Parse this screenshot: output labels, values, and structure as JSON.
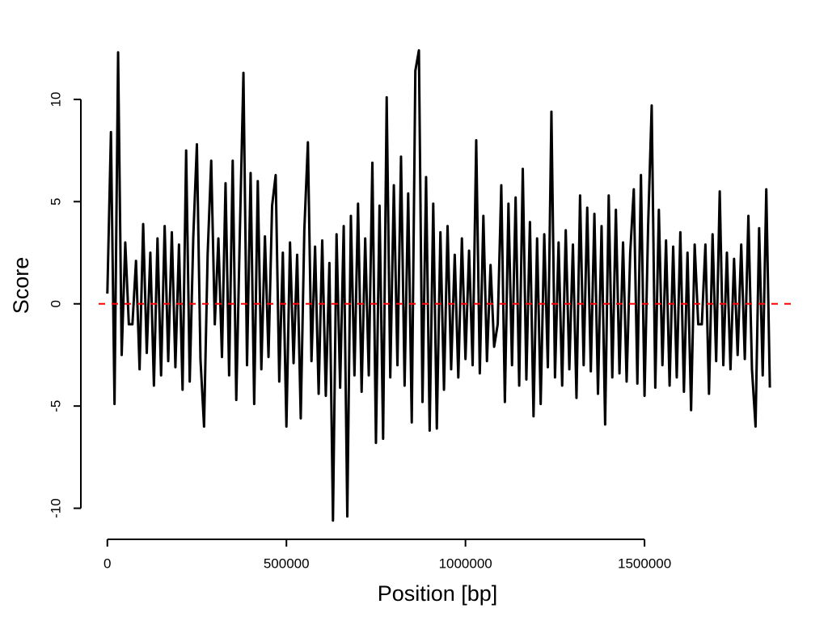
{
  "chart_data": {
    "type": "line",
    "xlabel": "Position [bp]",
    "ylabel": "Score",
    "xlim": [
      -74000,
      1922000
    ],
    "ylim": [
      -11.52,
      13.32
    ],
    "xticks": [
      0,
      500000,
      1000000,
      1500000
    ],
    "yticks": [
      -10,
      -5,
      0,
      5,
      10
    ],
    "hline": 0,
    "hline_color": "#ff0000",
    "series": [
      {
        "color": "#000000",
        "x": [
          0,
          10000,
          20000,
          30000,
          40000,
          50000,
          60000,
          70000,
          80000,
          90000,
          100000,
          110000,
          120000,
          130000,
          140000,
          150000,
          160000,
          170000,
          180000,
          190000,
          200000,
          210000,
          220000,
          230000,
          240000,
          250000,
          260000,
          270000,
          280000,
          290000,
          300000,
          310000,
          320000,
          330000,
          340000,
          350000,
          360000,
          370000,
          380000,
          390000,
          400000,
          410000,
          420000,
          430000,
          440000,
          450000,
          460000,
          470000,
          480000,
          490000,
          500000,
          510000,
          520000,
          530000,
          540000,
          550000,
          560000,
          570000,
          580000,
          590000,
          600000,
          610000,
          620000,
          630000,
          640000,
          650000,
          660000,
          670000,
          680000,
          690000,
          700000,
          710000,
          720000,
          730000,
          740000,
          750000,
          760000,
          770000,
          780000,
          790000,
          800000,
          810000,
          820000,
          830000,
          840000,
          850000,
          860000,
          870000,
          880000,
          890000,
          900000,
          910000,
          920000,
          930000,
          940000,
          950000,
          960000,
          970000,
          980000,
          990000,
          1000000,
          1010000,
          1020000,
          1030000,
          1040000,
          1050000,
          1060000,
          1070000,
          1080000,
          1090000,
          1100000,
          1110000,
          1120000,
          1130000,
          1140000,
          1150000,
          1160000,
          1170000,
          1180000,
          1190000,
          1200000,
          1210000,
          1220000,
          1230000,
          1240000,
          1250000,
          1260000,
          1270000,
          1280000,
          1290000,
          1300000,
          1310000,
          1320000,
          1330000,
          1340000,
          1350000,
          1360000,
          1370000,
          1380000,
          1390000,
          1400000,
          1410000,
          1420000,
          1430000,
          1440000,
          1450000,
          1460000,
          1470000,
          1480000,
          1490000,
          1500000,
          1510000,
          1520000,
          1530000,
          1540000,
          1550000,
          1560000,
          1570000,
          1580000,
          1590000,
          1600000,
          1610000,
          1620000,
          1630000,
          1640000,
          1650000,
          1660000,
          1670000,
          1680000,
          1690000,
          1700000,
          1710000,
          1720000,
          1730000,
          1740000,
          1750000,
          1760000,
          1770000,
          1780000,
          1790000,
          1800000,
          1810000,
          1820000,
          1830000,
          1840000,
          1850000
        ],
        "values": [
          0.5,
          8.4,
          -4.9,
          12.3,
          -2.5,
          3.0,
          -1.0,
          -1.0,
          2.1,
          -3.2,
          3.9,
          -2.4,
          2.5,
          -4.0,
          3.2,
          -3.5,
          3.8,
          -2.8,
          3.5,
          -3.1,
          2.9,
          -4.2,
          7.5,
          -3.8,
          3.3,
          7.8,
          -2.7,
          -6.0,
          2.4,
          7.0,
          -1.0,
          3.2,
          -2.6,
          5.9,
          -3.5,
          7.0,
          -4.7,
          3.5,
          11.3,
          -3.0,
          6.4,
          -4.9,
          6.0,
          -3.2,
          3.3,
          -2.6,
          4.8,
          6.3,
          -3.8,
          2.5,
          -6.0,
          3.0,
          -2.9,
          2.4,
          -5.6,
          3.6,
          7.9,
          -2.8,
          2.8,
          -4.4,
          3.1,
          -4.5,
          2.0,
          -10.6,
          3.4,
          -4.1,
          3.8,
          -10.4,
          4.3,
          -3.5,
          4.9,
          -4.3,
          3.2,
          -3.5,
          6.9,
          -6.8,
          4.8,
          -6.6,
          10.1,
          -3.6,
          5.8,
          -3.0,
          7.2,
          -4.0,
          5.4,
          -5.8,
          11.4,
          12.4,
          -4.8,
          6.2,
          -6.2,
          4.9,
          -6.1,
          3.5,
          -4.2,
          3.8,
          -3.2,
          2.4,
          -3.6,
          3.2,
          -2.7,
          2.6,
          -3.0,
          8.0,
          -3.4,
          4.3,
          -2.8,
          1.9,
          -2.1,
          -1.0,
          5.8,
          -4.8,
          4.9,
          -3.0,
          5.2,
          -4.0,
          6.6,
          -3.7,
          4.0,
          -5.5,
          3.2,
          -4.9,
          3.4,
          -3.1,
          9.4,
          -3.6,
          3.0,
          -4.0,
          3.6,
          -3.2,
          2.9,
          -4.6,
          5.3,
          -3.0,
          4.7,
          -3.3,
          4.4,
          -4.4,
          3.8,
          -5.9,
          5.3,
          -3.6,
          4.6,
          -3.4,
          3.0,
          -3.8,
          2.5,
          5.6,
          -3.9,
          6.3,
          -4.5,
          3.8,
          9.7,
          -4.1,
          4.6,
          -3.0,
          3.1,
          -4.0,
          2.8,
          -3.6,
          3.5,
          -4.3,
          2.5,
          -5.2,
          2.9,
          -1.0,
          -1.0,
          2.9,
          -4.4,
          3.4,
          -2.8,
          5.5,
          -3.0,
          2.5,
          -3.2,
          2.2,
          -2.5,
          2.9,
          -2.7,
          4.3,
          -3.2,
          -6.0,
          3.7,
          -3.5,
          5.6,
          -4.1
        ]
      }
    ]
  }
}
